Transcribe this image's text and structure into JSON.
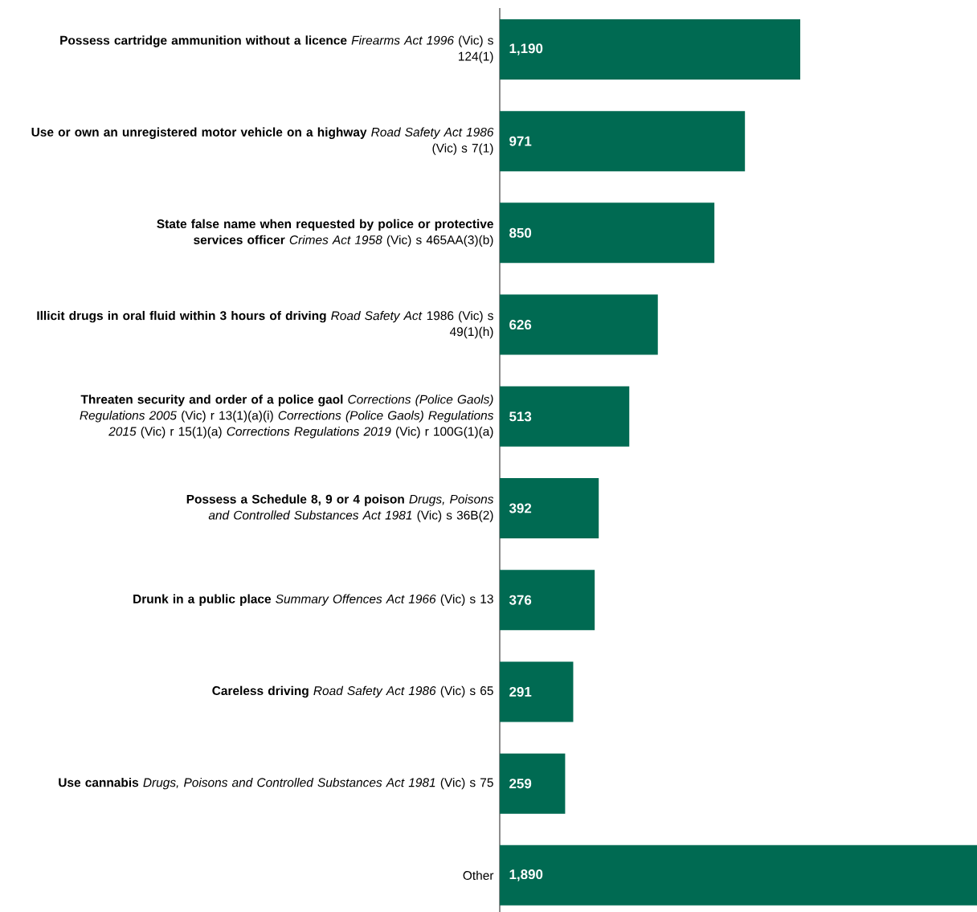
{
  "chart_data": {
    "type": "bar",
    "orientation": "horizontal",
    "categories": [
      "**Possess cartridge ammunition without a licence** *Firearms Act 1996* (Vic) s 124(1)",
      "**Use or own an unregistered motor vehicle on a highway** *Road Safety Act 1986* (Vic) s 7(1)",
      "**State false name when requested by police or protective services officer** *Crimes Act 1958* (Vic) s 465AA(3)(b)",
      "**Illicit drugs in oral fluid within 3 hours of driving** *Road Safety Act* 1986 (Vic) s 49(1)(h)",
      "**Threaten security and order of a police gaol** *Corrections (Police Gaols) Regulations 2005* (Vic) r 13(1)(a)(i) *Corrections (Police Gaols) Regulations 2015* (Vic) r 15(1)(a) *Corrections Regulations 2019* (Vic) r 100G(1)(a)",
      "**Possess a Schedule 8, 9 or 4 poison** *Drugs, Poisons and Controlled Substances Act 1981* (Vic) s 36B(2)",
      "**Drunk in a public place** *Summary Offences Act 1966* (Vic) s 13",
      "**Careless driving** *Road Safety Act 1986* (Vic) s 65",
      "**Use cannabis** *Drugs, Poisons and Controlled Substances Act 1981* (Vic) s 75",
      "Other"
    ],
    "values": [
      1190,
      971,
      850,
      626,
      513,
      392,
      376,
      291,
      259,
      1890
    ],
    "color": "#006a52",
    "value_labels": [
      "1,190",
      "971",
      "850",
      "626",
      "513",
      "392",
      "376",
      "291",
      "259",
      "1,890"
    ],
    "xlim": [
      0,
      1890
    ]
  }
}
